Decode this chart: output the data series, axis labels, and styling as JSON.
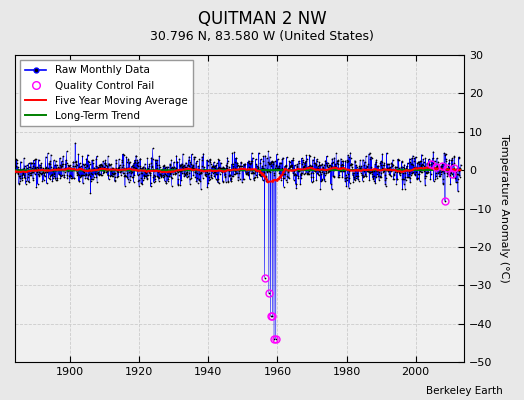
{
  "title": "QUITMAN 2 NW",
  "subtitle": "30.796 N, 83.580 W (United States)",
  "ylabel": "Temperature Anomaly (°C)",
  "credit": "Berkeley Earth",
  "xmin": 1884,
  "xmax": 2014,
  "ymin": -50,
  "ymax": 30,
  "yticks": [
    -50,
    -40,
    -30,
    -20,
    -10,
    0,
    10,
    20,
    30
  ],
  "xticks": [
    1900,
    1920,
    1940,
    1960,
    1980,
    2000
  ],
  "bg_color": "#e8e8e8",
  "plot_bg": "#f0f0f0",
  "grid_color": "#cccccc",
  "raw_color": "blue",
  "raw_dot_color": "black",
  "qc_color": "magenta",
  "moving_avg_color": "red",
  "trend_color": "green",
  "random_seed": 42,
  "start_year": 1884.0,
  "end_year": 2013.0,
  "outlier_data": [
    {
      "year": 1956.25,
      "value": -28
    },
    {
      "year": 1957.5,
      "value": -32
    },
    {
      "year": 1958.0,
      "value": -38
    },
    {
      "year": 1958.5,
      "value": -38
    },
    {
      "year": 1959.0,
      "value": -44
    },
    {
      "year": 1959.5,
      "value": -44
    }
  ],
  "qc_near_end": [
    {
      "year": 2004.5,
      "value": 1.5
    },
    {
      "year": 2006.0,
      "value": 0.8
    },
    {
      "year": 2007.5,
      "value": 1.2
    },
    {
      "year": 2009.0,
      "value": 0.5
    },
    {
      "year": 2010.5,
      "value": -1.0
    },
    {
      "year": 2011.0,
      "value": 0.5
    }
  ],
  "qc_outlier_far": {
    "year": 2008.5,
    "value": -8.0
  },
  "trend_y": 0.0,
  "trend_slope": 0.001,
  "title_fontsize": 12,
  "subtitle_fontsize": 9,
  "tick_fontsize": 8,
  "legend_fontsize": 7.5,
  "ylabel_fontsize": 8
}
